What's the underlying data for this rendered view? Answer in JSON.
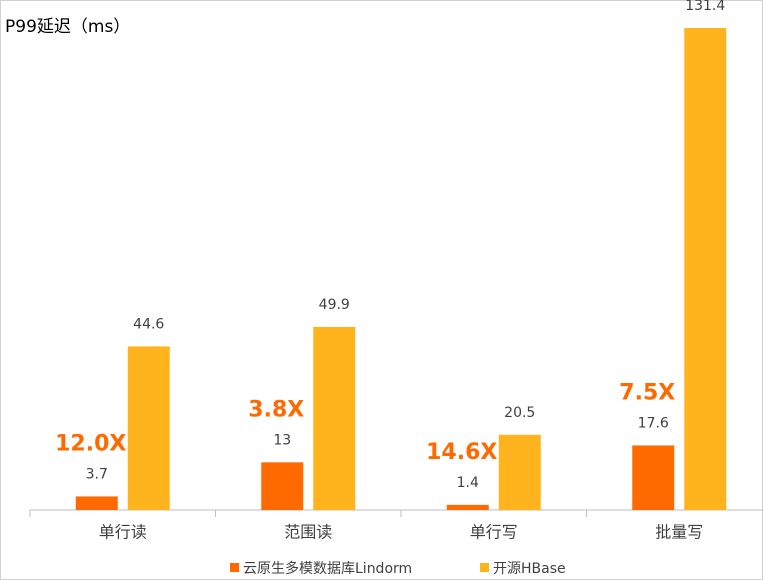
{
  "chart_data": {
    "type": "bar",
    "title": "P99延迟（ms）",
    "categories": [
      "单行读",
      "范围读",
      "单行写",
      "批量写"
    ],
    "series": [
      {
        "name": "云原生多模数据库Lindorm",
        "color": "#ff6a00",
        "values": [
          3.7,
          13,
          1.4,
          17.6
        ]
      },
      {
        "name": "开源HBase",
        "color": "#ffb41e",
        "values": [
          44.6,
          49.9,
          20.5,
          131.4
        ]
      }
    ],
    "annotations": [
      "12.0X",
      "3.8X",
      "14.6X",
      "7.5X"
    ],
    "annotation_color": "#ff6a00"
  }
}
